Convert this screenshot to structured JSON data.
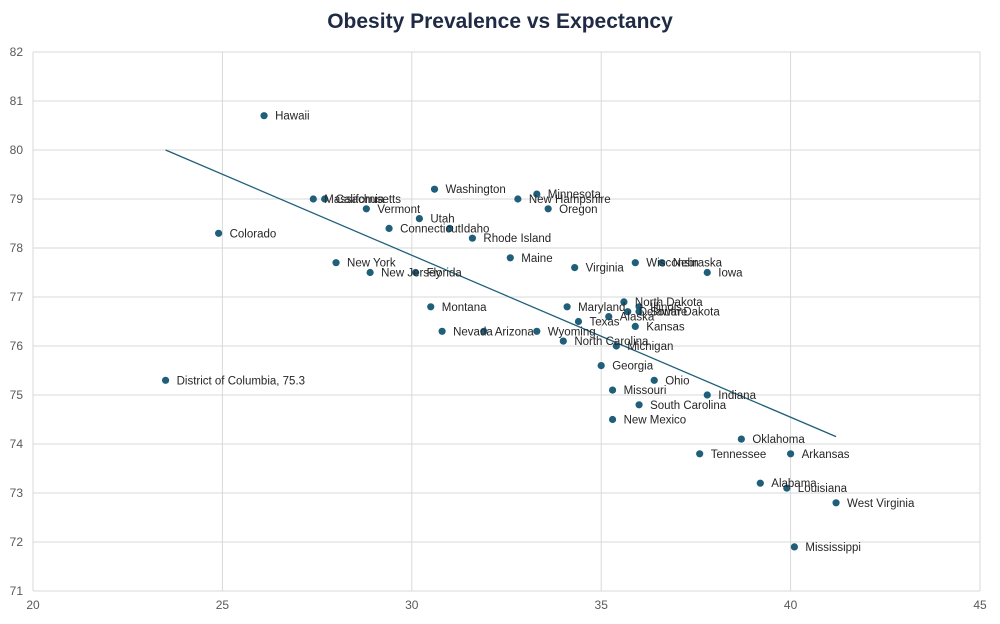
{
  "chart_data": {
    "type": "scatter",
    "title": "Obesity Prevalence vs Expectancy",
    "xlabel": "",
    "ylabel": "",
    "xlim": [
      20,
      45
    ],
    "ylim": [
      71,
      82
    ],
    "x_ticks": [
      20,
      25,
      30,
      35,
      40,
      45
    ],
    "y_ticks": [
      71,
      72,
      73,
      74,
      75,
      76,
      77,
      78,
      79,
      80,
      81,
      82
    ],
    "grid": true,
    "legend": "none",
    "marker_color": "#1f5f7a",
    "trendline": {
      "type": "linear",
      "x": [
        23.5,
        41.2
      ],
      "y": [
        80.0,
        74.15
      ],
      "color": "#1f5f7a"
    },
    "points": [
      {
        "label": "Hawaii",
        "x": 26.1,
        "y": 80.7
      },
      {
        "label": "Colorado",
        "x": 24.9,
        "y": 78.3
      },
      {
        "label": "District of Columbia, 75.3",
        "x": 23.5,
        "y": 75.3
      },
      {
        "label": "Massachusetts",
        "x": 27.4,
        "y": 79.0
      },
      {
        "label": "California",
        "x": 27.7,
        "y": 79.0
      },
      {
        "label": "Vermont",
        "x": 28.8,
        "y": 78.8
      },
      {
        "label": "Utah",
        "x": 30.2,
        "y": 78.6
      },
      {
        "label": "Connecticut",
        "x": 29.4,
        "y": 78.4
      },
      {
        "label": "Idaho",
        "x": 31.0,
        "y": 78.4
      },
      {
        "label": "Washington",
        "x": 30.6,
        "y": 79.2
      },
      {
        "label": "Minnesota",
        "x": 33.3,
        "y": 79.1
      },
      {
        "label": "New Hampshire",
        "x": 32.8,
        "y": 79.0
      },
      {
        "label": "Oregon",
        "x": 33.6,
        "y": 78.8
      },
      {
        "label": "Rhode Island",
        "x": 31.6,
        "y": 78.2
      },
      {
        "label": "New York",
        "x": 28.0,
        "y": 77.7
      },
      {
        "label": "New Jersey",
        "x": 28.9,
        "y": 77.5
      },
      {
        "label": "Florida",
        "x": 30.1,
        "y": 77.5
      },
      {
        "label": "Maine",
        "x": 32.6,
        "y": 77.8
      },
      {
        "label": "Virginia",
        "x": 34.3,
        "y": 77.6
      },
      {
        "label": "Wisconsin",
        "x": 35.9,
        "y": 77.7
      },
      {
        "label": "Nebraska",
        "x": 36.6,
        "y": 77.7
      },
      {
        "label": "Iowa",
        "x": 37.8,
        "y": 77.5
      },
      {
        "label": "Montana",
        "x": 30.5,
        "y": 76.8
      },
      {
        "label": "Nevada",
        "x": 30.8,
        "y": 76.3
      },
      {
        "label": "Arizona",
        "x": 31.9,
        "y": 76.3
      },
      {
        "label": "Wyoming",
        "x": 33.3,
        "y": 76.3
      },
      {
        "label": "Maryland",
        "x": 34.1,
        "y": 76.8
      },
      {
        "label": "North Dakota",
        "x": 35.6,
        "y": 76.9
      },
      {
        "label": "Illinois",
        "x": 36.0,
        "y": 76.8
      },
      {
        "label": "Delaware",
        "x": 35.7,
        "y": 76.7
      },
      {
        "label": "South Dakota",
        "x": 36.0,
        "y": 76.7
      },
      {
        "label": "Alaska",
        "x": 35.2,
        "y": 76.6
      },
      {
        "label": "Texas",
        "x": 34.4,
        "y": 76.5
      },
      {
        "label": "Kansas",
        "x": 35.9,
        "y": 76.4
      },
      {
        "label": "North Carolina",
        "x": 34.0,
        "y": 76.1
      },
      {
        "label": "Michigan",
        "x": 35.4,
        "y": 76.0
      },
      {
        "label": "Georgia",
        "x": 35.0,
        "y": 75.6
      },
      {
        "label": "Ohio",
        "x": 36.4,
        "y": 75.3
      },
      {
        "label": "Missouri",
        "x": 35.3,
        "y": 75.1
      },
      {
        "label": "Indiana",
        "x": 37.8,
        "y": 75.0
      },
      {
        "label": "South Carolina",
        "x": 36.0,
        "y": 74.8
      },
      {
        "label": "New Mexico",
        "x": 35.3,
        "y": 74.5
      },
      {
        "label": "Oklahoma",
        "x": 38.7,
        "y": 74.1
      },
      {
        "label": "Tennessee",
        "x": 37.6,
        "y": 73.8
      },
      {
        "label": "Arkansas",
        "x": 40.0,
        "y": 73.8
      },
      {
        "label": "Alabama",
        "x": 39.2,
        "y": 73.2
      },
      {
        "label": "Louisiana",
        "x": 39.9,
        "y": 73.1
      },
      {
        "label": "West Virginia",
        "x": 41.2,
        "y": 72.8
      },
      {
        "label": "Mississippi",
        "x": 40.1,
        "y": 71.9
      }
    ]
  }
}
